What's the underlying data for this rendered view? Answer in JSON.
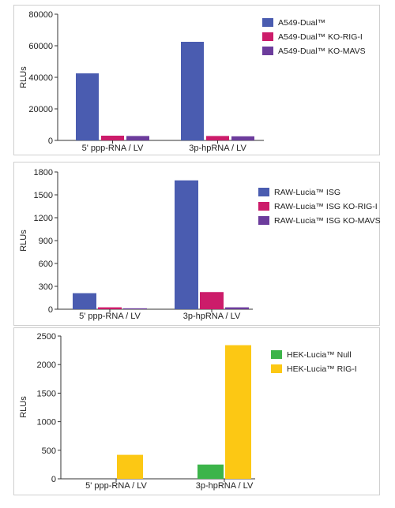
{
  "chart_data": [
    {
      "type": "bar",
      "ylabel": "RLUs",
      "categories": [
        "5' ppp-RNA / LV",
        "3p-hpRNA / LV"
      ],
      "ylim": [
        0,
        80000
      ],
      "yticks": [
        0,
        20000,
        40000,
        60000,
        80000
      ],
      "grid": false,
      "legend_position": "right",
      "series": [
        {
          "name": "A549-Dual™",
          "color": "#4a5cb0",
          "values": [
            42500,
            62500
          ]
        },
        {
          "name": "A549-Dual™ KO-RIG-I",
          "color": "#cc1c6a",
          "values": [
            3000,
            2800
          ]
        },
        {
          "name": "A549-Dual™ KO-MAVS",
          "color": "#6c3c9c",
          "values": [
            2800,
            2600
          ]
        }
      ]
    },
    {
      "type": "bar",
      "ylabel": "RLUs",
      "categories": [
        "5' ppp-RNA / LV",
        "3p-hpRNA / LV"
      ],
      "ylim": [
        0,
        1800
      ],
      "yticks": [
        0,
        300,
        600,
        900,
        1200,
        1500,
        1800
      ],
      "grid": false,
      "legend_position": "right",
      "series": [
        {
          "name": "RAW-Lucia™ ISG",
          "color": "#4a5cb0",
          "values": [
            210,
            1690
          ]
        },
        {
          "name": "RAW-Lucia™ ISG KO-RIG-I",
          "color": "#cc1c6a",
          "values": [
            25,
            225
          ]
        },
        {
          "name": "RAW-Lucia™ ISG KO-MAVS",
          "color": "#6c3c9c",
          "values": [
            12,
            25
          ]
        }
      ]
    },
    {
      "type": "bar",
      "ylabel": "RLUs",
      "categories": [
        "5' ppp-RNA / LV",
        "3p-hpRNA / LV"
      ],
      "ylim": [
        0,
        2500
      ],
      "yticks": [
        0,
        500,
        1000,
        1500,
        2000,
        2500
      ],
      "grid": false,
      "legend_position": "right",
      "series": [
        {
          "name": "HEK-Lucia™ Null",
          "color": "#3cb44a",
          "values": [
            0,
            250
          ]
        },
        {
          "name": "HEK-Lucia™ RIG-I",
          "color": "#fcc814",
          "values": [
            420,
            2340
          ]
        }
      ]
    }
  ]
}
